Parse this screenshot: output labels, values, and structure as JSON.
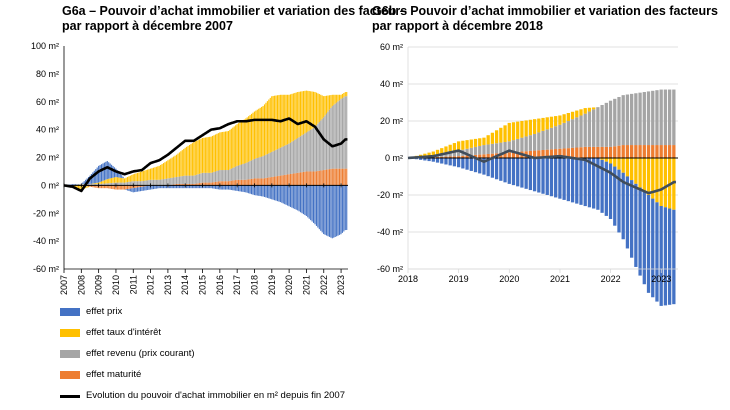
{
  "colors": {
    "prix": "#4472C4",
    "taux": "#FFC000",
    "revenu": "#A5A5A5",
    "maturite": "#ED7D31",
    "line": "#000000",
    "lineB": "#404D5B",
    "axis": "#000000",
    "grid": "#D9D9D9"
  },
  "legend": [
    {
      "key": "prix",
      "label": "effet prix",
      "kind": "box"
    },
    {
      "key": "taux",
      "label": "effet taux d'intérêt",
      "kind": "box"
    },
    {
      "key": "revenu",
      "label": "effet revenu (prix courant)",
      "kind": "box"
    },
    {
      "key": "maturite",
      "label": "effet maturité",
      "kind": "box"
    },
    {
      "key": "line",
      "label": "Evolution du pouvoir d'achat immobilier en m² depuis fin 2007",
      "kind": "line"
    }
  ],
  "chart_data": [
    {
      "type": "bar",
      "title": "G6a – Pouvoir d’achat immobilier et variation des facteurs par rapport à décembre 2007",
      "ylim": [
        -60,
        100
      ],
      "yticks": [
        -60,
        -40,
        -20,
        0,
        20,
        40,
        60,
        80,
        100
      ],
      "ytick_labels": [
        "-60 m²",
        "-40 m²",
        "-20 m²",
        "0 m²",
        "20 m²",
        "40 m²",
        "60 m²",
        "80 m²",
        "100 m²"
      ],
      "xlim": [
        2007,
        2023.4
      ],
      "xticks": [
        2007,
        2008,
        2009,
        2010,
        2011,
        2012,
        2013,
        2014,
        2015,
        2016,
        2017,
        2018,
        2019,
        2020,
        2021,
        2022,
        2023
      ],
      "xtick_labels": [
        "2007",
        "2008",
        "2009",
        "2010",
        "2011",
        "2012",
        "2013",
        "2014",
        "2015",
        "2016",
        "2017",
        "2018",
        "2019",
        "2020",
        "2021",
        "2022",
        "2023"
      ],
      "grid": false,
      "bar_step": 0.0833,
      "anchors": {
        "x": [
          2007,
          2007.5,
          2008,
          2008.5,
          2009,
          2009.5,
          2010,
          2010.5,
          2011,
          2011.5,
          2012,
          2012.5,
          2013,
          2013.5,
          2014,
          2014.5,
          2015,
          2015.5,
          2016,
          2016.5,
          2017,
          2017.5,
          2018,
          2018.5,
          2019,
          2019.5,
          2020,
          2020.5,
          2021,
          2021.5,
          2022,
          2022.5,
          2023,
          2023.25
        ],
        "prix": [
          0,
          0.5,
          0,
          6,
          12,
          13,
          6,
          0,
          -3,
          -3,
          -3,
          -2,
          -2,
          -2,
          -2,
          -2,
          -2,
          -2,
          -3,
          -3,
          -4,
          -5,
          -7,
          -8,
          -10,
          -12,
          -15,
          -18,
          -22,
          -28,
          -35,
          -38,
          -35,
          -32
        ],
        "taux": [
          0,
          -1,
          -3,
          0,
          1,
          3,
          4,
          3,
          5,
          7,
          8,
          10,
          13,
          16,
          20,
          24,
          25,
          26,
          27,
          28,
          30,
          32,
          34,
          36,
          40,
          38,
          35,
          33,
          30,
          25,
          15,
          8,
          3,
          3
        ],
        "revenu": [
          0,
          0.5,
          1,
          1,
          1,
          1.5,
          2,
          2,
          3,
          3,
          4,
          4,
          5,
          5,
          6,
          6,
          7,
          7,
          8,
          8,
          10,
          12,
          14,
          16,
          18,
          20,
          22,
          25,
          28,
          32,
          38,
          45,
          50,
          52
        ],
        "maturite": [
          0,
          0,
          0,
          -1,
          -2,
          -2,
          -3,
          -3,
          -2,
          -1,
          0,
          0,
          0,
          1,
          1,
          1,
          2,
          2,
          3,
          3,
          4,
          4,
          5,
          5,
          6,
          7,
          8,
          9,
          10,
          10,
          11,
          12,
          12,
          12
        ],
        "line": [
          0,
          -1,
          -4,
          5,
          10,
          13,
          10,
          8,
          10,
          11,
          16,
          18,
          22,
          27,
          32,
          32,
          36,
          40,
          41,
          44,
          46,
          46,
          47,
          47,
          47,
          46,
          48,
          44,
          46,
          42,
          33,
          28,
          30,
          33
        ]
      }
    },
    {
      "type": "bar",
      "title": "G6b – Pouvoir d’achat immobilier et variation des facteurs par rapport à décembre 2018",
      "ylim": [
        -60,
        60
      ],
      "yticks": [
        -60,
        -40,
        -20,
        0,
        20,
        40,
        60
      ],
      "ytick_labels": [
        "-60 m²",
        "-40 m²",
        "-20 m²",
        "0 m²",
        "20 m²",
        "40 m²",
        "60 m²"
      ],
      "xlim": [
        2018,
        2023.33
      ],
      "xticks": [
        2018,
        2019,
        2020,
        2021,
        2022,
        2023
      ],
      "xtick_labels": [
        "2018",
        "2019",
        "2020",
        "2021",
        "2022",
        "2023"
      ],
      "grid": true,
      "bar_step": 0.0833,
      "anchors": {
        "x": [
          2018,
          2018.5,
          2019,
          2019.5,
          2020,
          2020.5,
          2021,
          2021.5,
          2022,
          2022.25,
          2022.5,
          2022.75,
          2023,
          2023.25
        ],
        "prix": [
          0,
          -2,
          -5,
          -9,
          -14,
          -18,
          -22,
          -26,
          -30,
          -36,
          -45,
          -53,
          -54,
          -51
        ],
        "taux": [
          0,
          2,
          5,
          4,
          10,
          8,
          5,
          3,
          -3,
          -8,
          -14,
          -20,
          -26,
          -28
        ],
        "revenu": [
          0,
          1,
          3,
          5,
          6,
          9,
          13,
          18,
          25,
          27,
          28,
          29,
          30,
          30
        ],
        "maturite": [
          0,
          0.5,
          1,
          2,
          3,
          4,
          5,
          6,
          6,
          7,
          7,
          7,
          7,
          7
        ],
        "line": [
          0,
          1,
          4,
          -2,
          4,
          0,
          1,
          -1,
          -8,
          -13,
          -16,
          -19,
          -17,
          -13
        ]
      }
    }
  ]
}
